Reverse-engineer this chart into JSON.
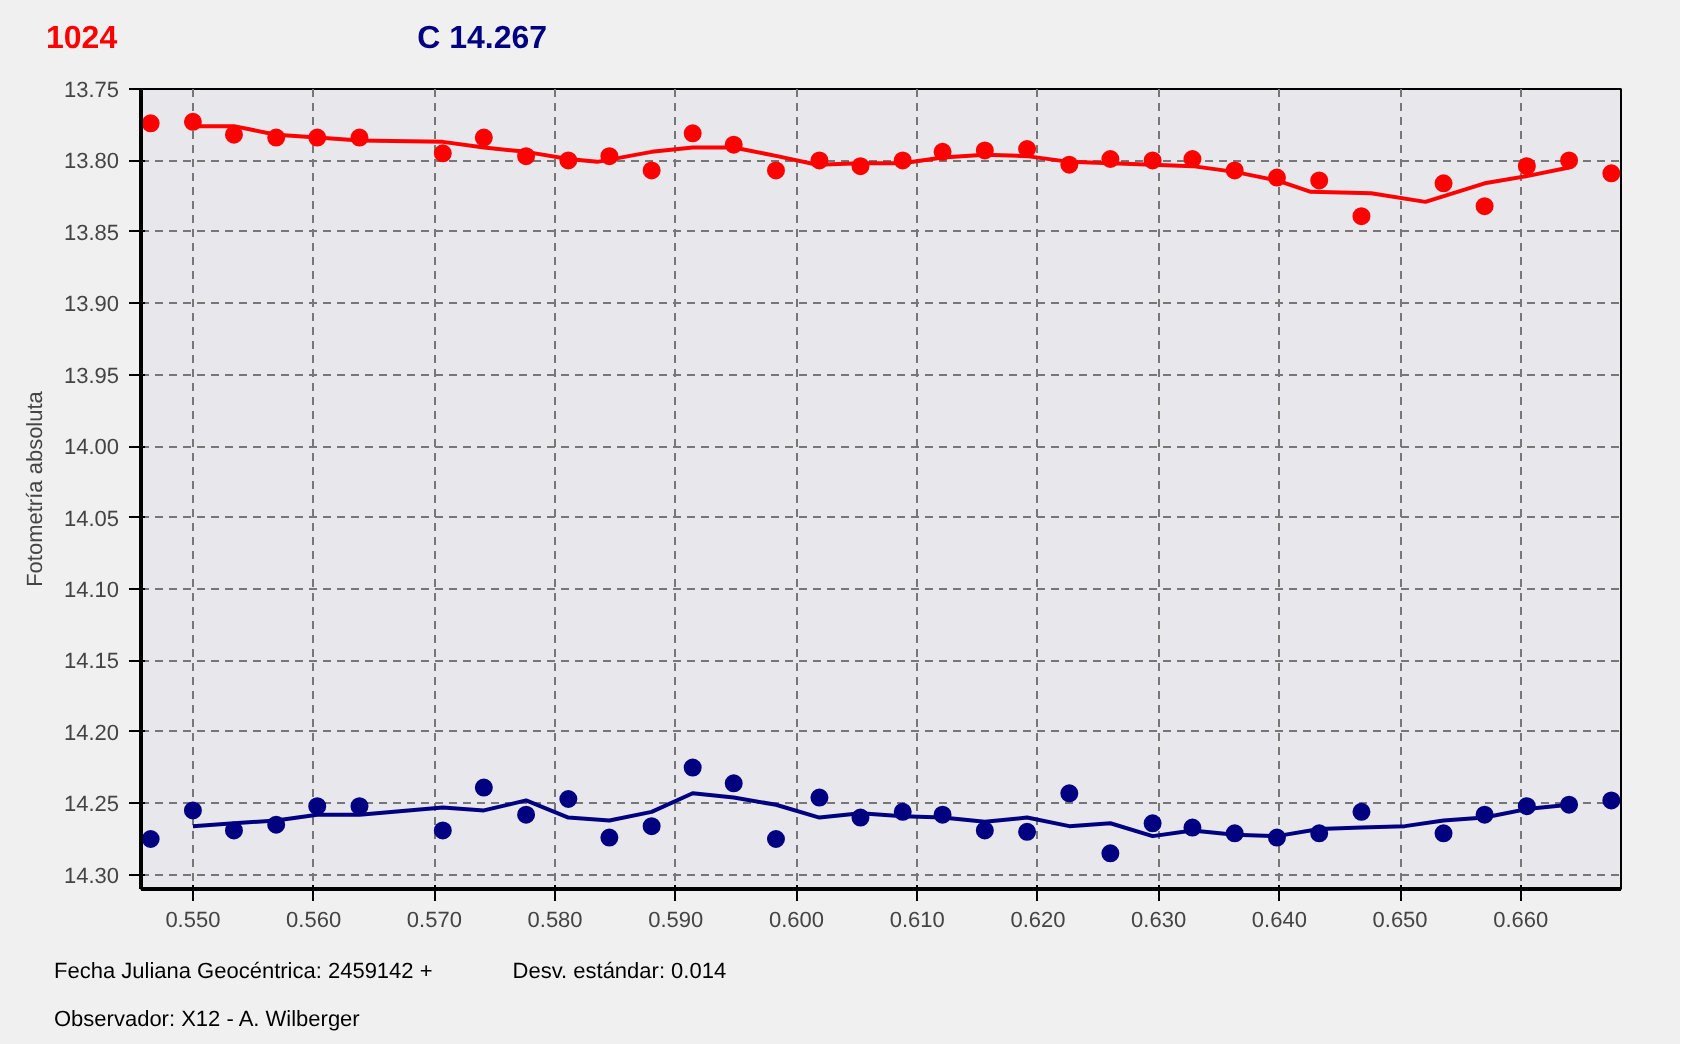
{
  "chart_data": {
    "type": "scatter",
    "ylabel": "Fotometría absoluta",
    "xlim": [
      0.5457,
      0.6683
    ],
    "ylim": [
      14.31,
      13.75
    ],
    "xticks": [
      {
        "value": 0.55,
        "label": "0.550"
      },
      {
        "value": 0.56,
        "label": "0.560"
      },
      {
        "value": 0.57,
        "label": "0.570"
      },
      {
        "value": 0.58,
        "label": "0.580"
      },
      {
        "value": 0.59,
        "label": "0.590"
      },
      {
        "value": 0.6,
        "label": "0.600"
      },
      {
        "value": 0.61,
        "label": "0.610"
      },
      {
        "value": 0.62,
        "label": "0.620"
      },
      {
        "value": 0.63,
        "label": "0.630"
      },
      {
        "value": 0.64,
        "label": "0.640"
      },
      {
        "value": 0.65,
        "label": "0.650"
      },
      {
        "value": 0.66,
        "label": "0.660"
      }
    ],
    "yticks": [
      {
        "value": 13.75,
        "label": "13.75"
      },
      {
        "value": 13.8,
        "label": "13.80"
      },
      {
        "value": 13.85,
        "label": "13.85"
      },
      {
        "value": 13.9,
        "label": "13.90"
      },
      {
        "value": 13.95,
        "label": "13.95"
      },
      {
        "value": 14.0,
        "label": "14.00"
      },
      {
        "value": 14.05,
        "label": "14.05"
      },
      {
        "value": 14.1,
        "label": "14.10"
      },
      {
        "value": 14.15,
        "label": "14.15"
      },
      {
        "value": 14.2,
        "label": "14.20"
      },
      {
        "value": 14.25,
        "label": "14.25"
      },
      {
        "value": 14.3,
        "label": "14.30"
      }
    ],
    "grid": true,
    "annotations": [
      "Fecha Juliana Geocéntrica: 2459142 +",
      "Desv. estándar: 0.014",
      "Observador: X12 - A. Wilberger"
    ],
    "series": [
      {
        "marker": "circle",
        "name": "1024",
        "color": "#ff0000",
        "x": [
          0.5465,
          0.55,
          0.5534,
          0.5569,
          0.5603,
          0.5638,
          0.5707,
          0.5741,
          0.5776,
          0.5811,
          0.5845,
          0.588,
          0.5914,
          0.5948,
          0.5983,
          0.6019,
          0.6053,
          0.6088,
          0.6121,
          0.6156,
          0.6191,
          0.6226,
          0.626,
          0.6295,
          0.6328,
          0.6363,
          0.6398,
          0.6433,
          0.6468,
          0.6536,
          0.657,
          0.6605,
          0.664,
          0.6675
        ],
        "values": [
          13.774,
          13.773,
          13.782,
          13.784,
          13.784,
          13.784,
          13.795,
          13.784,
          13.797,
          13.8,
          13.797,
          13.807,
          13.781,
          13.789,
          13.807,
          13.8,
          13.804,
          13.8,
          13.794,
          13.793,
          13.792,
          13.803,
          13.799,
          13.8,
          13.799,
          13.807,
          13.812,
          13.814,
          13.839,
          13.816,
          13.832,
          13.804,
          13.8,
          13.809
        ]
      },
      {
        "type": "line",
        "color": "#ff0000",
        "line_style": "solid",
        "x": [
          0.55,
          0.5534,
          0.5569,
          0.5603,
          0.5638,
          0.5707,
          0.5741,
          0.5776,
          0.5811,
          0.5835,
          0.588,
          0.5914,
          0.5948,
          0.5984,
          0.6017,
          0.6053,
          0.6088,
          0.6121,
          0.6156,
          0.6191,
          0.6226,
          0.6295,
          0.6328,
          0.6363,
          0.6398,
          0.6426,
          0.6476,
          0.6521,
          0.657,
          0.6605,
          0.664
        ],
        "values": [
          13.776,
          13.776,
          13.782,
          13.784,
          13.786,
          13.787,
          13.791,
          13.794,
          13.799,
          13.801,
          13.794,
          13.791,
          13.791,
          13.797,
          13.803,
          13.802,
          13.802,
          13.798,
          13.796,
          13.797,
          13.801,
          13.803,
          13.804,
          13.808,
          13.814,
          13.822,
          13.823,
          13.829,
          13.816,
          13.811,
          13.805
        ]
      },
      {
        "marker": "circle",
        "name": "C 14.267",
        "color": "#000080",
        "x": [
          0.5465,
          0.55,
          0.5534,
          0.5569,
          0.5603,
          0.5638,
          0.5707,
          0.5741,
          0.5776,
          0.5811,
          0.5845,
          0.588,
          0.5914,
          0.5948,
          0.5983,
          0.6019,
          0.6053,
          0.6088,
          0.6121,
          0.6156,
          0.6191,
          0.6226,
          0.626,
          0.6295,
          0.6328,
          0.6363,
          0.6398,
          0.6433,
          0.6468,
          0.6536,
          0.657,
          0.6605,
          0.664,
          0.6675
        ],
        "values": [
          14.275,
          14.255,
          14.269,
          14.265,
          14.252,
          14.252,
          14.269,
          14.239,
          14.258,
          14.247,
          14.274,
          14.266,
          14.225,
          14.236,
          14.275,
          14.246,
          14.26,
          14.256,
          14.258,
          14.269,
          14.27,
          14.243,
          14.285,
          14.264,
          14.267,
          14.271,
          14.274,
          14.271,
          14.256,
          14.271,
          14.258,
          14.252,
          14.251,
          14.248
        ]
      },
      {
        "type": "line",
        "color": "#000080",
        "line_style": "solid",
        "x": [
          0.55,
          0.5534,
          0.5569,
          0.5603,
          0.5638,
          0.5707,
          0.5741,
          0.5776,
          0.5811,
          0.5845,
          0.588,
          0.5914,
          0.5948,
          0.5983,
          0.6019,
          0.6053,
          0.6088,
          0.6121,
          0.6156,
          0.6191,
          0.6226,
          0.626,
          0.6295,
          0.6328,
          0.6363,
          0.6398,
          0.6433,
          0.6468,
          0.6504,
          0.6536,
          0.657,
          0.6605,
          0.664
        ],
        "values": [
          14.266,
          14.264,
          14.262,
          14.258,
          14.258,
          14.253,
          14.255,
          14.248,
          14.26,
          14.262,
          14.256,
          14.243,
          14.246,
          14.251,
          14.26,
          14.257,
          14.259,
          14.26,
          14.263,
          14.26,
          14.266,
          14.264,
          14.273,
          14.269,
          14.272,
          14.273,
          14.268,
          14.267,
          14.266,
          14.262,
          14.26,
          14.254,
          14.251
        ]
      }
    ]
  }
}
